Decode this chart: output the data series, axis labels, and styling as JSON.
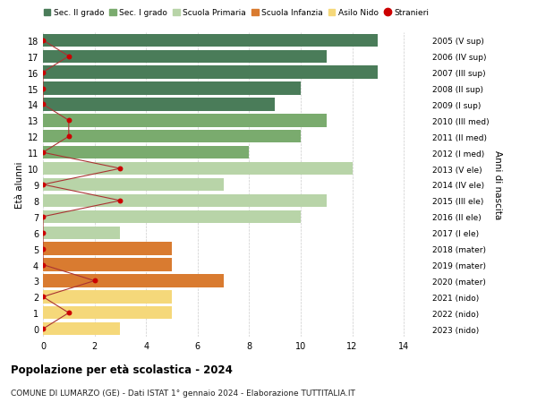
{
  "ages": [
    18,
    17,
    16,
    15,
    14,
    13,
    12,
    11,
    10,
    9,
    8,
    7,
    6,
    5,
    4,
    3,
    2,
    1,
    0
  ],
  "years": [
    "2005 (V sup)",
    "2006 (IV sup)",
    "2007 (III sup)",
    "2008 (II sup)",
    "2009 (I sup)",
    "2010 (III med)",
    "2011 (II med)",
    "2012 (I med)",
    "2013 (V ele)",
    "2014 (IV ele)",
    "2015 (III ele)",
    "2016 (II ele)",
    "2017 (I ele)",
    "2018 (mater)",
    "2019 (mater)",
    "2020 (mater)",
    "2021 (nido)",
    "2022 (nido)",
    "2023 (nido)"
  ],
  "bar_values": [
    13,
    11,
    13,
    10,
    9,
    11,
    10,
    8,
    12,
    7,
    11,
    10,
    3,
    5,
    5,
    7,
    5,
    5,
    3
  ],
  "stranieri": [
    0,
    1,
    0,
    0,
    0,
    1,
    1,
    0,
    3,
    0,
    3,
    0,
    0,
    0,
    0,
    2,
    0,
    1,
    0
  ],
  "bar_colors": [
    "#4a7c59",
    "#4a7c59",
    "#4a7c59",
    "#4a7c59",
    "#4a7c59",
    "#7aab6e",
    "#7aab6e",
    "#7aab6e",
    "#b8d4a8",
    "#b8d4a8",
    "#b8d4a8",
    "#b8d4a8",
    "#b8d4a8",
    "#d97b30",
    "#d97b30",
    "#d97b30",
    "#f5d87a",
    "#f5d87a",
    "#f5d87a"
  ],
  "sec2_color": "#4a7c59",
  "sec1_color": "#7aab6e",
  "primaria_color": "#b8d4a8",
  "infanzia_color": "#d97b30",
  "nido_color": "#f5d87a",
  "stranieri_color": "#cc0000",
  "line_color": "#aa3333",
  "title": "Popolazione per età scolastica - 2024",
  "subtitle": "COMUNE DI LUMARZO (GE) - Dati ISTAT 1° gennaio 2024 - Elaborazione TUTTITALIA.IT",
  "ylabel_left": "Età alunni",
  "ylabel_right": "Anni di nascita",
  "xlim": [
    0,
    15
  ],
  "ylim": [
    -0.5,
    18.5
  ],
  "bg_color": "#ffffff",
  "grid_color": "#cccccc"
}
